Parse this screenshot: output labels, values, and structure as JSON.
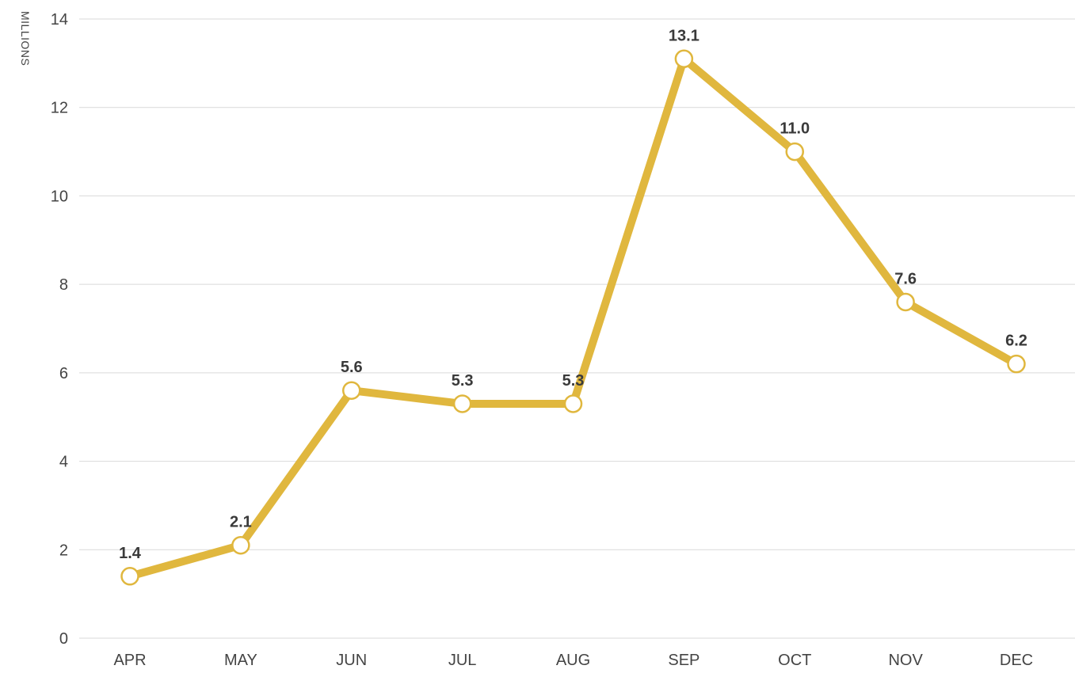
{
  "chart_data": {
    "type": "line",
    "title": "",
    "xlabel": "",
    "ylabel": "MILLIONS",
    "categories": [
      "APR",
      "MAY",
      "JUN",
      "JUL",
      "AUG",
      "SEP",
      "OCT",
      "NOV",
      "DEC"
    ],
    "series": [
      {
        "values": [
          1.4,
          2.1,
          5.6,
          5.3,
          5.3,
          13.1,
          11.0,
          7.6,
          6.2
        ],
        "labels": [
          "1.4",
          "2.1",
          "5.6",
          "5.3",
          "5.3",
          "13.1",
          "11.0",
          "7.6",
          "6.2"
        ],
        "color": "#e0b73e"
      }
    ],
    "ylim": [
      0,
      14
    ],
    "yticks": [
      0,
      2,
      4,
      6,
      8,
      10,
      12,
      14
    ],
    "grid": true,
    "legend": "none"
  }
}
